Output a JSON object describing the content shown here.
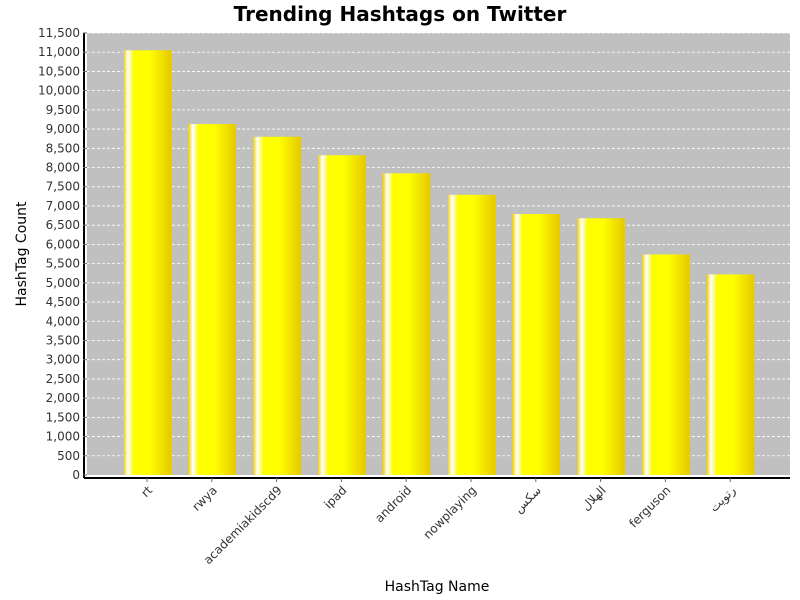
{
  "chart_data": {
    "type": "bar",
    "title": "Trending Hashtags on Twitter",
    "xlabel": "HashTag Name",
    "ylabel": "HashTag Count",
    "categories": [
      "rt",
      "rwya",
      "academiakidscd9",
      "ipad",
      "android",
      "nowplaying",
      "سكس",
      "الهلال",
      "ferguson",
      "رتويت"
    ],
    "values": [
      11050,
      9130,
      8800,
      8320,
      7850,
      7290,
      6790,
      6680,
      5740,
      5220
    ],
    "ylim": [
      0,
      11500
    ],
    "y_ticks": [
      0,
      500,
      1000,
      1500,
      2000,
      2500,
      3000,
      3500,
      4000,
      4500,
      5000,
      5500,
      6000,
      6500,
      7000,
      7500,
      8000,
      8500,
      9000,
      9500,
      10000,
      10500,
      11000,
      11500
    ],
    "y_tick_labels": [
      "0",
      "500",
      "1,000",
      "1,500",
      "2,000",
      "2,500",
      "3,000",
      "3,500",
      "4,000",
      "4,500",
      "5,000",
      "5,500",
      "6,000",
      "6,500",
      "7,000",
      "7,500",
      "8,000",
      "8,500",
      "9,000",
      "9,500",
      "10,000",
      "10,500",
      "11,000",
      "11,500"
    ],
    "grid": true,
    "colors": {
      "plot_background": "#c0c0c0",
      "gridline": "#ffffff",
      "bar_main": "#ffff00",
      "bar_shade": "#e6c800",
      "bar_highlight": "#ffffff"
    }
  }
}
